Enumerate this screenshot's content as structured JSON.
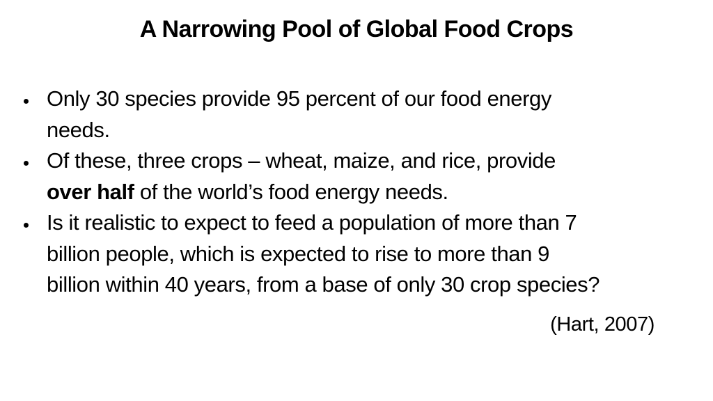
{
  "slide": {
    "background_color": "#ffffff",
    "text_color": "#000000",
    "title": "A Narrowing Pool of Global Food Crops",
    "bullets": [
      {
        "lines": [
          "Only 30 species provide 95 percent of our food energy",
          "needs."
        ]
      },
      {
        "line1": "Of these, three crops – wheat, maize, and rice, provide",
        "line2_bold": "over half",
        "line2_rest": " of the world’s food energy needs."
      },
      {
        "lines": [
          "Is it realistic to expect to feed a population of more than 7",
          "billion people, which is expected to rise to more than 9",
          "billion within 40 years, from a base of only 30 crop species?"
        ]
      }
    ],
    "citation": "(Hart, 2007)"
  }
}
